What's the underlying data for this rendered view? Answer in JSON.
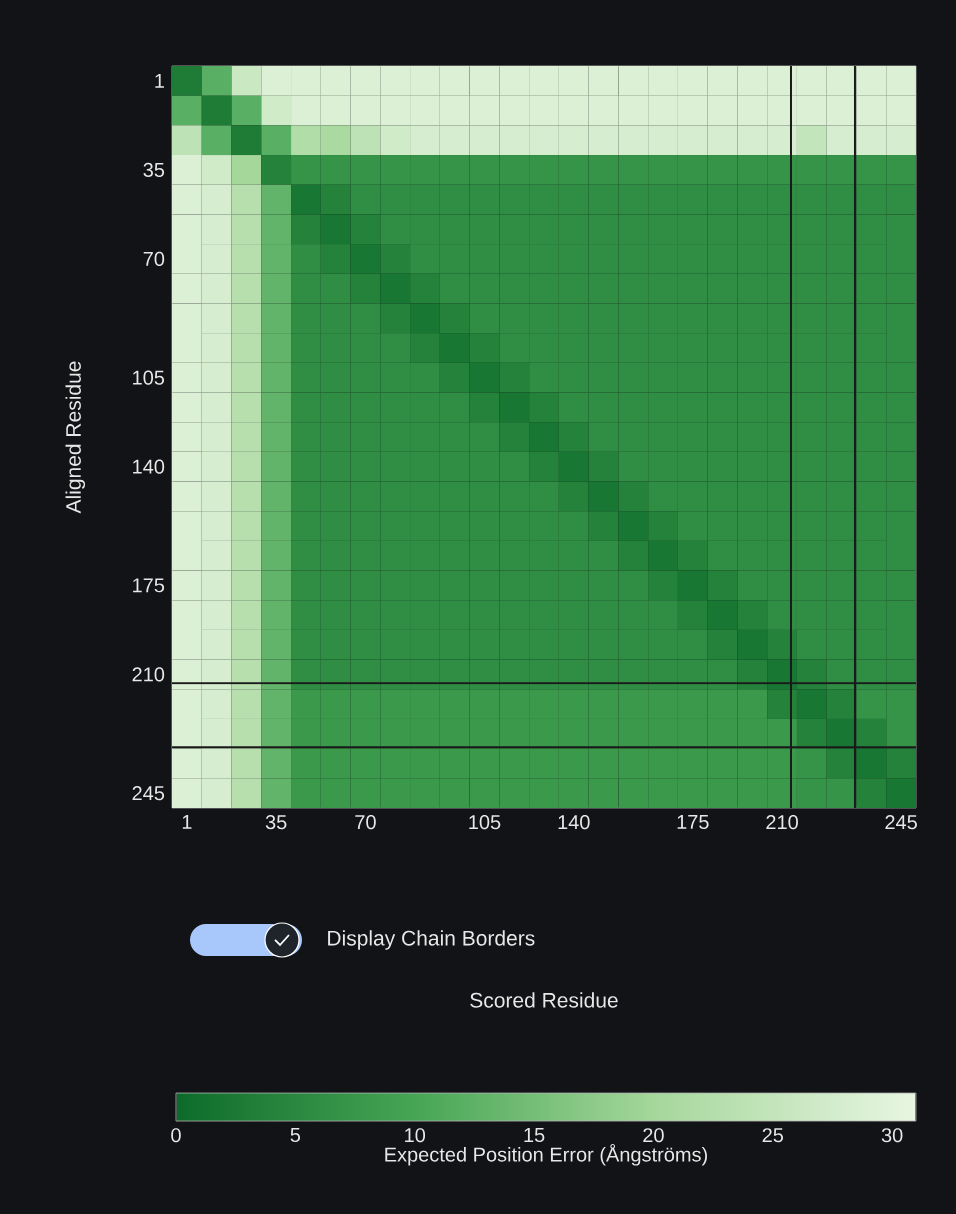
{
  "chart_data": {
    "type": "heatmap",
    "ylabel": "Aligned Residue",
    "clabel": "Expected Position Error (Ångströms)",
    "categories": [
      "1",
      null,
      null,
      "35",
      null,
      null,
      "70",
      null,
      null,
      null,
      "105",
      null,
      null,
      "140",
      null,
      null,
      null,
      "175",
      null,
      null,
      "210",
      null,
      null,
      null,
      "245"
    ],
    "y_categories": [
      "1",
      null,
      null,
      "35",
      null,
      null,
      "70",
      null,
      null,
      null,
      "105",
      null,
      null,
      "140",
      null,
      null,
      null,
      "175",
      null,
      null,
      "210",
      null,
      null,
      null,
      "245"
    ],
    "cells": [
      [
        3,
        12,
        26,
        29,
        29,
        29,
        29,
        29,
        29,
        29,
        29,
        29,
        29,
        29,
        29,
        29,
        29,
        29,
        29,
        29,
        29,
        29,
        29,
        29,
        29
      ],
      [
        12,
        3,
        12,
        27,
        29,
        29,
        29,
        29,
        29,
        29,
        29,
        29,
        29,
        29,
        29,
        29,
        29,
        29,
        29,
        29,
        29,
        29,
        29,
        29,
        29
      ],
      [
        24,
        12,
        3,
        12,
        22,
        21,
        24,
        27,
        28,
        28,
        28,
        28,
        28,
        28,
        28,
        28,
        28,
        28,
        28,
        28,
        28,
        25,
        28,
        28,
        28
      ],
      [
        29,
        27,
        20,
        4,
        7,
        7,
        7,
        7,
        7,
        7,
        7,
        7,
        7,
        7,
        7,
        7,
        7,
        7,
        7,
        7,
        7,
        7,
        7,
        7,
        7
      ],
      [
        29,
        28,
        23,
        13,
        2,
        4,
        6,
        6,
        6,
        6,
        6,
        6,
        6,
        6,
        6,
        6,
        6,
        6,
        6,
        6,
        6,
        6,
        6,
        6,
        6
      ],
      [
        29,
        28,
        23,
        13,
        4,
        2,
        4,
        6,
        6,
        6,
        6,
        6,
        6,
        6,
        6,
        6,
        6,
        6,
        6,
        6,
        6,
        6,
        6,
        6,
        6
      ],
      [
        29,
        28,
        23,
        13,
        6,
        4,
        2,
        4,
        6,
        6,
        6,
        6,
        6,
        6,
        6,
        6,
        6,
        6,
        6,
        6,
        6,
        6,
        6,
        6,
        6
      ],
      [
        29,
        28,
        23,
        13,
        6,
        6,
        4,
        2,
        4,
        6,
        6,
        6,
        6,
        6,
        6,
        6,
        6,
        6,
        6,
        6,
        6,
        6,
        6,
        6,
        6
      ],
      [
        29,
        28,
        23,
        13,
        6,
        6,
        6,
        4,
        2,
        4,
        6,
        6,
        6,
        6,
        6,
        6,
        6,
        6,
        6,
        6,
        6,
        6,
        6,
        6,
        6
      ],
      [
        29,
        28,
        23,
        13,
        6,
        6,
        6,
        6,
        4,
        2,
        4,
        6,
        6,
        6,
        6,
        6,
        6,
        6,
        6,
        6,
        6,
        6,
        6,
        6,
        6
      ],
      [
        29,
        28,
        23,
        13,
        6,
        6,
        6,
        6,
        6,
        4,
        2,
        4,
        6,
        6,
        6,
        6,
        6,
        6,
        6,
        6,
        6,
        6,
        6,
        6,
        6
      ],
      [
        29,
        28,
        23,
        13,
        6,
        6,
        6,
        6,
        6,
        6,
        4,
        2,
        4,
        6,
        6,
        6,
        6,
        6,
        6,
        6,
        6,
        6,
        6,
        6,
        6
      ],
      [
        29,
        28,
        23,
        13,
        6,
        6,
        6,
        6,
        6,
        6,
        6,
        4,
        2,
        4,
        6,
        6,
        6,
        6,
        6,
        6,
        6,
        6,
        6,
        6,
        6
      ],
      [
        29,
        28,
        23,
        13,
        6,
        6,
        6,
        6,
        6,
        6,
        6,
        6,
        4,
        2,
        4,
        6,
        6,
        6,
        6,
        6,
        6,
        6,
        6,
        6,
        6
      ],
      [
        29,
        28,
        23,
        13,
        6,
        6,
        6,
        6,
        6,
        6,
        6,
        6,
        6,
        4,
        2,
        4,
        6,
        6,
        6,
        6,
        6,
        6,
        6,
        6,
        6
      ],
      [
        29,
        28,
        23,
        13,
        6,
        6,
        6,
        6,
        6,
        6,
        6,
        6,
        6,
        6,
        4,
        2,
        4,
        6,
        6,
        6,
        6,
        6,
        6,
        6,
        6
      ],
      [
        29,
        28,
        23,
        13,
        6,
        6,
        6,
        6,
        6,
        6,
        6,
        6,
        6,
        6,
        6,
        4,
        2,
        4,
        6,
        6,
        6,
        6,
        6,
        6,
        6
      ],
      [
        29,
        28,
        23,
        13,
        6,
        6,
        6,
        6,
        6,
        6,
        6,
        6,
        6,
        6,
        6,
        6,
        4,
        2,
        4,
        6,
        6,
        6,
        6,
        6,
        6
      ],
      [
        29,
        28,
        23,
        13,
        6,
        6,
        6,
        6,
        6,
        6,
        6,
        6,
        6,
        6,
        6,
        6,
        6,
        4,
        2,
        4,
        6,
        6,
        6,
        6,
        6
      ],
      [
        29,
        28,
        23,
        13,
        6,
        6,
        6,
        6,
        6,
        6,
        6,
        6,
        6,
        6,
        6,
        6,
        6,
        6,
        4,
        2,
        4,
        6,
        6,
        6,
        6
      ],
      [
        29,
        28,
        23,
        13,
        6,
        6,
        6,
        6,
        6,
        6,
        6,
        6,
        6,
        6,
        6,
        6,
        6,
        6,
        6,
        4,
        2,
        4,
        6,
        6,
        6
      ],
      [
        29,
        28,
        23,
        13,
        8,
        8,
        8,
        8,
        8,
        8,
        8,
        8,
        8,
        8,
        8,
        8,
        8,
        8,
        8,
        8,
        4,
        2,
        4,
        7,
        7
      ],
      [
        29,
        28,
        23,
        13,
        8,
        8,
        8,
        8,
        8,
        8,
        8,
        8,
        8,
        8,
        8,
        8,
        8,
        8,
        8,
        8,
        8,
        4,
        2,
        4,
        7
      ],
      [
        29,
        28,
        23,
        13,
        8,
        8,
        8,
        8,
        8,
        8,
        8,
        8,
        8,
        8,
        8,
        8,
        8,
        8,
        8,
        8,
        8,
        7,
        4,
        2,
        4
      ],
      [
        29,
        28,
        23,
        13,
        8,
        8,
        8,
        8,
        8,
        8,
        8,
        8,
        8,
        8,
        8,
        8,
        8,
        8,
        8,
        8,
        8,
        7,
        7,
        4,
        2
      ]
    ],
    "clim": [
      0,
      31
    ],
    "cticks": [
      0,
      5,
      10,
      15,
      20,
      25,
      30
    ],
    "annotations": [
      "Display Chain Borders",
      "Scored Residue"
    ]
  }
}
